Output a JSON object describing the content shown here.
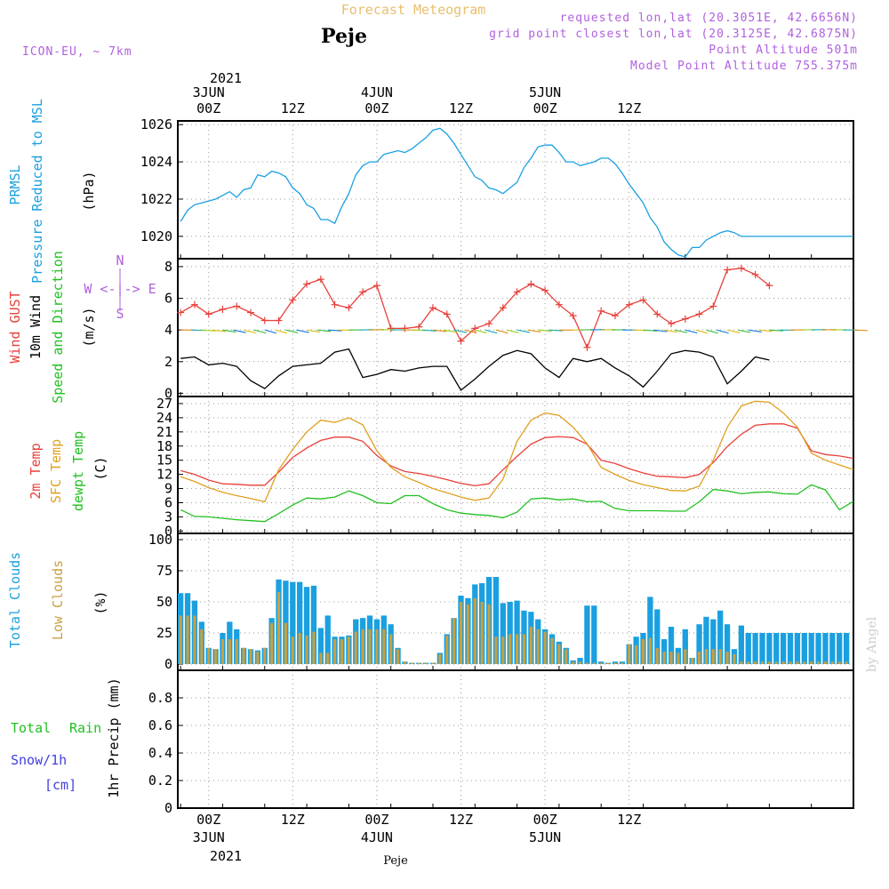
{
  "header": {
    "title": "Forecast Meteogram",
    "location": "Peje",
    "model": "ICON-EU, ~ 7km",
    "requested": "requested lon,lat (20.3051E, 42.6656N)",
    "grid_point": "grid point closest lon,lat (20.3125E, 42.6875N)",
    "point_altitude": "Point Altitude 501m",
    "model_altitude": "Model Point Altitude 755.375m",
    "footer_location": "Peje",
    "watermark": "by Angel"
  },
  "time_axis": {
    "top_year": "2021",
    "dates": [
      "3JUN",
      "4JUN",
      "5JUN"
    ],
    "tick_labels": [
      "00Z",
      "12Z",
      "00Z",
      "12Z",
      "00Z",
      "12Z"
    ],
    "bottom_year": "2021"
  },
  "panels": {
    "pressure": {
      "label1": "PRMSL",
      "label2": "Pressure Reduced to MSL",
      "unit": "(hPa)",
      "color": "#1aa0e0"
    },
    "wind": {
      "label1": "Wind GUST",
      "label2": "10m Wind",
      "label3": "Speed and Direction",
      "unit": "(m/s)",
      "compass_n": "N",
      "compass_s": "S",
      "compass_we": "W <-|-> E"
    },
    "temp": {
      "label1": "2m Temp",
      "label2": "SFC Temp",
      "label3": "dewpt Temp",
      "unit": "(C)"
    },
    "clouds": {
      "label1": "Total Clouds",
      "label2": "Low Clouds",
      "unit": "(%)"
    },
    "precip": {
      "label1": "Total",
      "label2": "Rain",
      "label3": "Snow/1h",
      "label4": "[cm]",
      "unit": "1hr Precip (mm)"
    }
  },
  "colors": {
    "pressure": "#1aa0e0",
    "gust": "#e8403a",
    "wind": "#000000",
    "t2m": "#e8403a",
    "sfc": "#e0a020",
    "dewpt": "#22c022",
    "total_clouds": "#1aa0e0",
    "low_clouds": "#c8a040",
    "label_purple": "#b060e0",
    "title_tan": "#e8c070",
    "precip_green": "#22c022",
    "precip_blue": "#4040e0"
  },
  "chart_data": [
    {
      "type": "line",
      "name": "PRMSL",
      "x_hours": [
        -4,
        -3,
        -2,
        -1,
        0,
        1,
        2,
        3,
        4,
        5,
        6,
        7,
        8,
        9,
        10,
        11,
        12,
        13,
        14,
        15,
        16,
        17,
        18,
        19,
        20,
        21,
        22,
        23,
        24,
        25,
        26,
        27,
        28,
        29,
        30,
        31,
        32,
        33,
        34,
        35,
        36,
        37,
        38,
        39,
        40,
        41,
        42,
        43,
        44,
        45,
        46,
        47,
        48,
        49,
        50,
        51,
        52,
        53,
        54,
        55,
        56,
        57,
        58,
        59,
        60,
        61,
        62,
        63,
        64,
        65,
        66,
        67,
        68,
        69,
        70,
        71,
        72,
        73,
        74,
        75,
        76,
        77,
        78,
        79,
        80,
        81,
        82,
        83,
        84,
        85,
        86,
        87,
        88,
        89,
        90,
        91,
        92
      ],
      "values": [
        1020.8,
        1021.4,
        1021.7,
        1021.8,
        1021.9,
        1022.0,
        1022.2,
        1022.4,
        1022.1,
        1022.5,
        1022.6,
        1023.3,
        1023.2,
        1023.5,
        1023.4,
        1023.2,
        1022.6,
        1022.3,
        1021.7,
        1021.5,
        1020.9,
        1020.9,
        1020.7,
        1021.6,
        1022.3,
        1023.3,
        1023.8,
        1024.0,
        1024.0,
        1024.4,
        1024.5,
        1024.6,
        1024.5,
        1024.7,
        1025.0,
        1025.3,
        1025.7,
        1025.8,
        1025.5,
        1025.0,
        1024.4,
        1023.8,
        1023.2,
        1023.0,
        1022.6,
        1022.5,
        1022.3,
        1022.6,
        1022.9,
        1023.7,
        1024.2,
        1024.8,
        1024.9,
        1024.9,
        1024.5,
        1024.0,
        1024.0,
        1023.8,
        1023.9,
        1024.0,
        1024.2,
        1024.2,
        1023.9,
        1023.4,
        1022.8,
        1022.3,
        1021.8,
        1021.0,
        1020.5,
        1019.7,
        1019.3,
        1019.0,
        1018.9,
        1019.4,
        1019.4,
        1019.8,
        1020.0,
        1020.2,
        1020.3,
        1020.2,
        1020.0,
        1020.0,
        1020.0,
        1020.0,
        1020.0,
        1020.0,
        1020.0,
        1020.0,
        1020.0,
        1020.0,
        1020.0,
        1020.0,
        1020.0,
        1020.0,
        1020.0,
        1020.0,
        1020.0
      ],
      "ylim": [
        1018.8,
        1026.2
      ],
      "yticks": [
        1020,
        1022,
        1024,
        1026
      ]
    },
    {
      "type": "line",
      "name": "Wind GUST / 10m Wind",
      "x_hours": [
        -4,
        -2,
        0,
        2,
        4,
        6,
        8,
        10,
        12,
        14,
        16,
        18,
        20,
        22,
        24,
        26,
        28,
        30,
        32,
        34,
        36,
        38,
        40,
        42,
        44,
        46,
        48,
        50,
        52,
        54,
        56,
        58,
        60,
        62,
        64,
        66,
        68,
        70,
        72,
        74,
        76,
        78,
        80
      ],
      "gust": [
        5.1,
        5.6,
        5.0,
        5.3,
        5.5,
        5.1,
        4.6,
        4.6,
        5.9,
        6.9,
        7.2,
        5.6,
        5.4,
        6.4,
        6.8,
        4.1,
        4.1,
        4.2,
        5.4,
        5.0,
        3.3,
        4.1,
        4.4,
        5.4,
        6.4,
        6.9,
        6.5,
        5.6,
        4.9,
        2.9,
        5.2,
        4.9,
        5.6,
        5.9,
        5.0,
        4.4,
        4.7,
        5.0,
        5.5,
        7.8,
        7.9,
        7.5,
        6.8
      ],
      "wind": [
        2.2,
        2.3,
        1.8,
        1.9,
        1.7,
        0.8,
        0.3,
        1.1,
        1.7,
        1.8,
        1.9,
        2.6,
        2.8,
        1.0,
        1.2,
        1.5,
        1.4,
        1.6,
        1.7,
        1.7,
        0.2,
        0.9,
        1.7,
        2.4,
        2.7,
        2.5,
        1.6,
        1.0,
        2.2,
        2.0,
        2.2,
        1.6,
        1.1,
        0.4,
        1.4,
        2.5,
        2.7,
        2.6,
        2.3,
        0.6,
        1.4,
        2.3,
        2.1
      ],
      "ylim": [
        -0.2,
        8.5
      ],
      "yticks": [
        0,
        2,
        4,
        6,
        8
      ]
    },
    {
      "type": "line",
      "name": "Temperatures",
      "x_hours": [
        -4,
        -2,
        0,
        2,
        4,
        6,
        8,
        10,
        12,
        14,
        16,
        18,
        20,
        22,
        24,
        26,
        28,
        30,
        32,
        34,
        36,
        38,
        40,
        42,
        44,
        46,
        48,
        50,
        52,
        54,
        56,
        58,
        60,
        62,
        64,
        66,
        68,
        70,
        72,
        74,
        76,
        78,
        80,
        82,
        84,
        86,
        88,
        90,
        92
      ],
      "t2m": [
        12.8,
        12.0,
        10.8,
        10.0,
        9.9,
        9.7,
        9.7,
        12.5,
        15.6,
        17.6,
        19.2,
        19.9,
        19.9,
        19.0,
        16.0,
        13.8,
        12.6,
        12.2,
        11.6,
        10.9,
        10.1,
        9.6,
        10.0,
        13.0,
        15.8,
        18.4,
        19.8,
        20.0,
        19.8,
        18.4,
        15.0,
        14.3,
        13.2,
        12.3,
        11.6,
        11.5,
        11.3,
        12.0,
        14.5,
        17.9,
        20.5,
        22.4,
        22.7,
        22.7,
        21.8,
        17.0,
        16.2,
        15.9,
        15.4
      ],
      "sfc": [
        11.5,
        10.5,
        9.2,
        8.2,
        7.5,
        6.9,
        6.2,
        13.0,
        17.3,
        21.0,
        23.5,
        23.0,
        24.0,
        22.5,
        17.0,
        13.5,
        11.5,
        10.3,
        9.0,
        8.1,
        7.2,
        6.5,
        7.0,
        11.0,
        19.0,
        23.5,
        25.0,
        24.5,
        22.0,
        18.5,
        13.5,
        12.0,
        10.7,
        9.8,
        9.2,
        8.6,
        8.5,
        9.5,
        15.0,
        22.0,
        26.5,
        27.5,
        27.3,
        25.0,
        22.0,
        16.5,
        15.0,
        14.0,
        13.0
      ],
      "dewpt": [
        4.5,
        3.1,
        3.0,
        2.7,
        2.4,
        2.2,
        2.0,
        3.7,
        5.5,
        7.0,
        6.8,
        7.2,
        8.5,
        7.5,
        6.0,
        5.8,
        7.5,
        7.5,
        5.8,
        4.5,
        3.8,
        3.5,
        3.3,
        2.8,
        4.0,
        6.8,
        7.0,
        6.6,
        6.8,
        6.2,
        6.3,
        4.8,
        4.3,
        4.3,
        4.3,
        4.2,
        4.2,
        6.2,
        8.8,
        8.5,
        7.9,
        8.2,
        8.3,
        7.9,
        7.8,
        9.8,
        8.7,
        4.5,
        6.3
      ],
      "ylim": [
        -0.5,
        28.5
      ],
      "yticks": [
        0,
        3,
        6,
        9,
        12,
        15,
        18,
        21,
        24,
        27
      ]
    },
    {
      "type": "bar",
      "name": "Clouds",
      "x_hours": [
        -4,
        -3,
        -2,
        -1,
        0,
        1,
        2,
        3,
        4,
        5,
        6,
        7,
        8,
        9,
        10,
        11,
        12,
        13,
        14,
        15,
        16,
        17,
        18,
        19,
        20,
        21,
        22,
        23,
        24,
        25,
        26,
        27,
        28,
        29,
        30,
        31,
        32,
        33,
        34,
        35,
        36,
        37,
        38,
        39,
        40,
        41,
        42,
        43,
        44,
        45,
        46,
        47,
        48,
        49,
        50,
        51,
        52,
        53,
        54,
        55,
        56,
        57,
        58,
        59,
        60,
        61,
        62,
        63,
        64,
        65,
        66,
        67,
        68,
        69,
        70,
        71,
        72,
        73,
        74,
        75,
        76,
        77,
        78,
        79,
        80,
        81,
        82,
        83,
        84,
        85,
        86,
        87,
        88,
        89,
        90,
        91,
        92
      ],
      "total": [
        57,
        57,
        51,
        34,
        13,
        12,
        25,
        34,
        28,
        13,
        12,
        11,
        13,
        37,
        68,
        67,
        66,
        66,
        62,
        63,
        29,
        39,
        22,
        22,
        23,
        36,
        37,
        39,
        36,
        39,
        32,
        13,
        2,
        1,
        1,
        1,
        1,
        9,
        24,
        37,
        55,
        53,
        64,
        65,
        70,
        70,
        49,
        50,
        51,
        43,
        42,
        36,
        28,
        24,
        18,
        13,
        3,
        5,
        47,
        47,
        2,
        1,
        2,
        2,
        16,
        22,
        25,
        54,
        44,
        20,
        30,
        13,
        28,
        5,
        32,
        38,
        36,
        43,
        32,
        12,
        31,
        25,
        25,
        25,
        25,
        25,
        25,
        25,
        25,
        25,
        25,
        25,
        25,
        25,
        25,
        25,
        25
      ],
      "low": [
        39,
        39,
        39,
        28,
        13,
        12,
        20,
        20,
        20,
        13,
        12,
        10,
        13,
        33,
        58,
        33,
        22,
        25,
        23,
        26,
        9,
        9,
        20,
        20,
        22,
        26,
        28,
        28,
        28,
        28,
        24,
        12,
        2,
        1,
        1,
        1,
        1,
        8,
        23,
        37,
        50,
        48,
        53,
        50,
        48,
        22,
        22,
        24,
        24,
        24,
        30,
        28,
        26,
        21,
        16,
        12,
        2,
        2,
        1,
        1,
        1,
        1,
        1,
        1,
        16,
        15,
        20,
        21,
        13,
        10,
        10,
        9,
        12,
        5,
        10,
        12,
        12,
        12,
        10,
        8,
        2,
        2,
        2,
        2,
        2,
        2,
        2,
        2,
        2,
        2,
        2,
        2,
        2,
        2,
        2,
        2,
        2
      ],
      "ylim": [
        -5,
        105
      ],
      "yticks": [
        0,
        25,
        50,
        75,
        100
      ]
    },
    {
      "type": "bar",
      "name": "1hr Precip",
      "x_hours": [],
      "rain": [],
      "snow": [],
      "ylim": [
        0,
        1
      ],
      "yticks": [
        0,
        0.2,
        0.4,
        0.6,
        0.8
      ],
      "ytick_labels": [
        "0",
        "0.2",
        "0.4",
        "0.6",
        "0.8"
      ]
    }
  ]
}
